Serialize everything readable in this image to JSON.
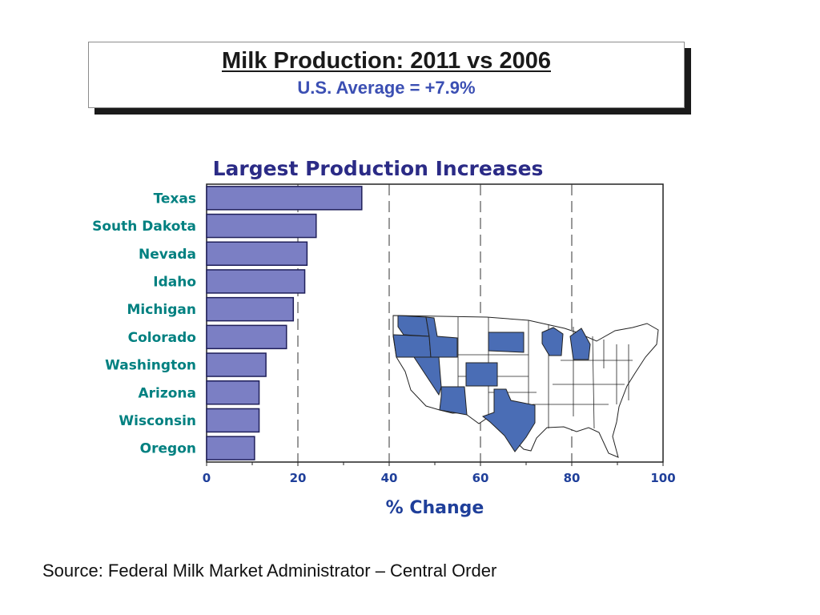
{
  "slide": {
    "title": "Milk Production: 2011 vs 2006",
    "subtitle": "U.S. Average = +7.9%",
    "source": "Source: Federal Milk Market Administrator – Central Order"
  },
  "colors": {
    "bar_fill": "#7b7fc4",
    "bar_stroke": "#1f1f5a",
    "state_labels": "#008080",
    "chart_title": "#2b2b86",
    "axis_text": "#1f3f9a",
    "map_highlight": "#4a6db5"
  },
  "chart_data": {
    "type": "bar",
    "orientation": "horizontal",
    "title": "Largest Production Increases",
    "xlabel": "% Change",
    "ylabel": "",
    "categories": [
      "Texas",
      "South Dakota",
      "Nevada",
      "Idaho",
      "Michigan",
      "Colorado",
      "Washington",
      "Arizona",
      "Wisconsin",
      "Oregon"
    ],
    "values": [
      34,
      24,
      22,
      21.5,
      19,
      17.5,
      13,
      11.5,
      11.5,
      10.5
    ],
    "xlim": [
      0,
      100
    ],
    "xticks": [
      "0",
      "20",
      "40",
      "60",
      "80",
      "100"
    ],
    "grid": "vertical dashed lines at 20, 40, 60, 80",
    "inset": "U.S. map with the ten listed states highlighted"
  }
}
